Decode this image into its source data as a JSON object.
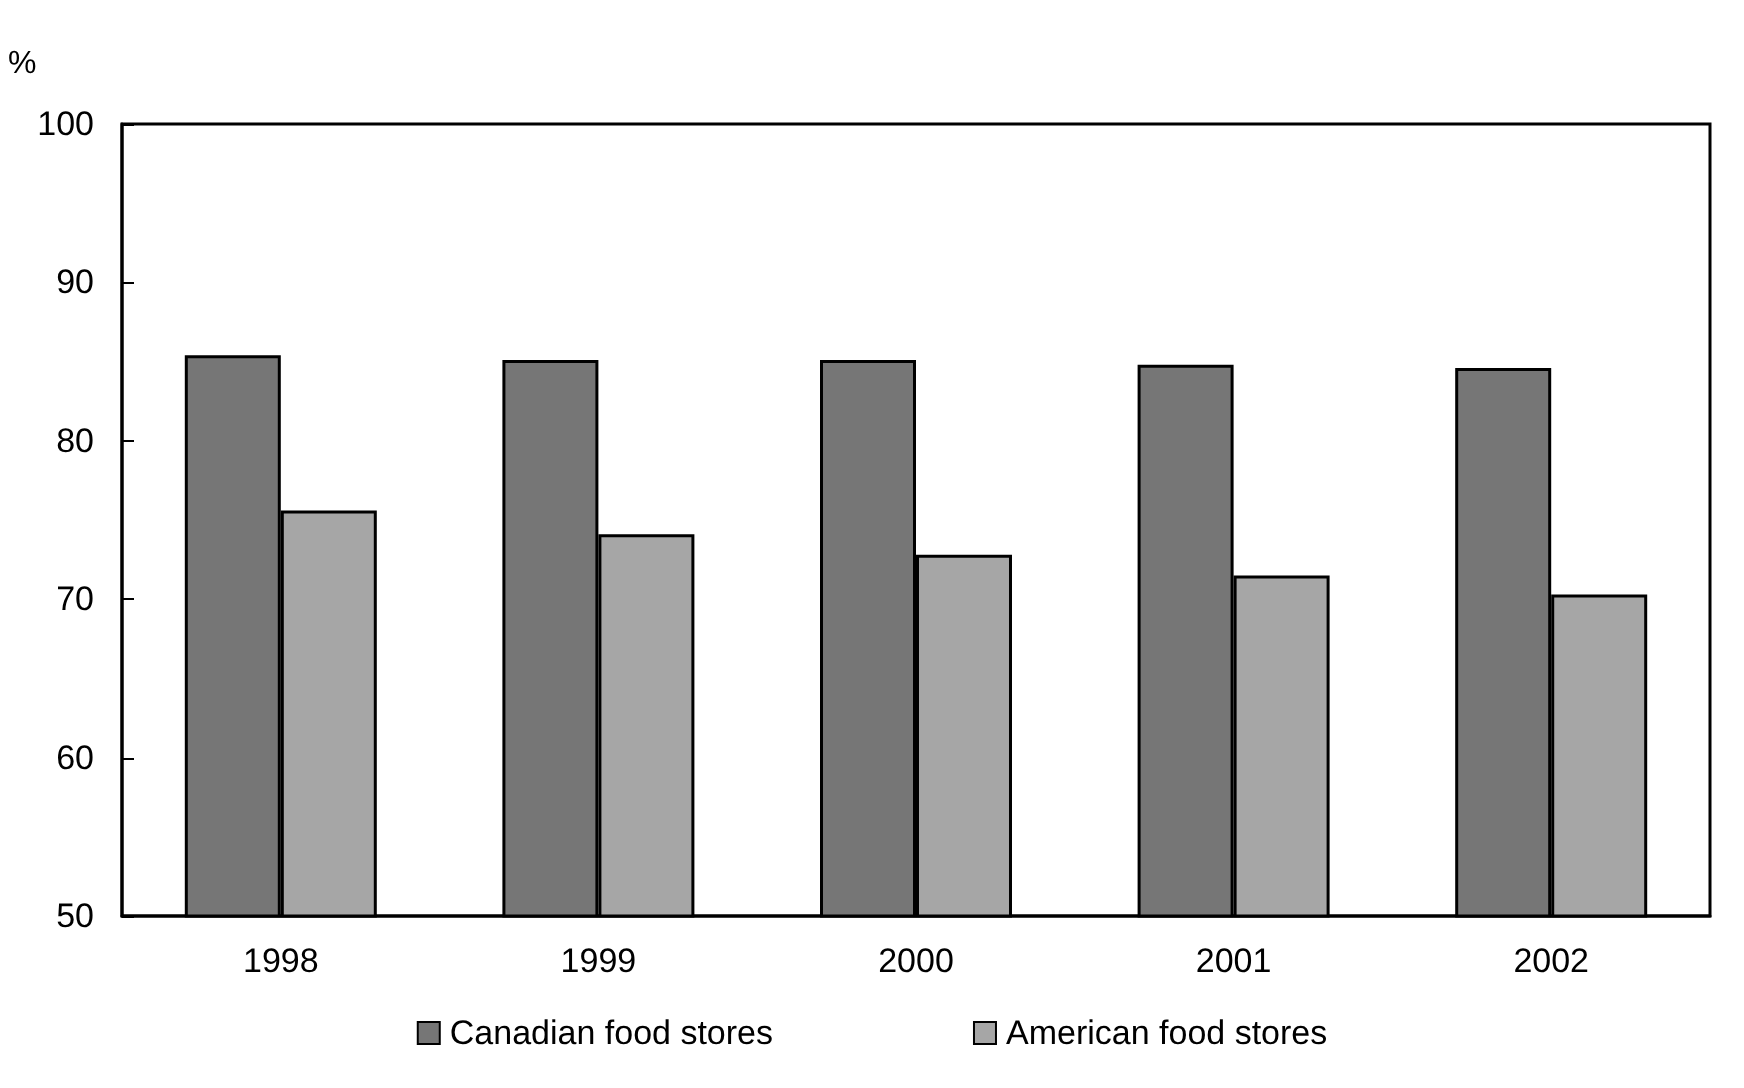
{
  "chart_data": {
    "type": "bar",
    "ylabel": "%",
    "categories": [
      "1998",
      "1999",
      "2000",
      "2001",
      "2002"
    ],
    "series": [
      {
        "name": "Canadian food stores",
        "color": "#767676",
        "values": [
          85.4,
          85.1,
          85.1,
          84.8,
          84.6
        ]
      },
      {
        "name": "American food stores",
        "color": "#a6a6a6",
        "values": [
          75.6,
          74.1,
          72.8,
          71.5,
          70.3
        ]
      }
    ],
    "ylim": [
      50,
      100
    ],
    "yticks": [
      50,
      60,
      70,
      80,
      90,
      100
    ],
    "grid": false,
    "legend": "bottom"
  }
}
